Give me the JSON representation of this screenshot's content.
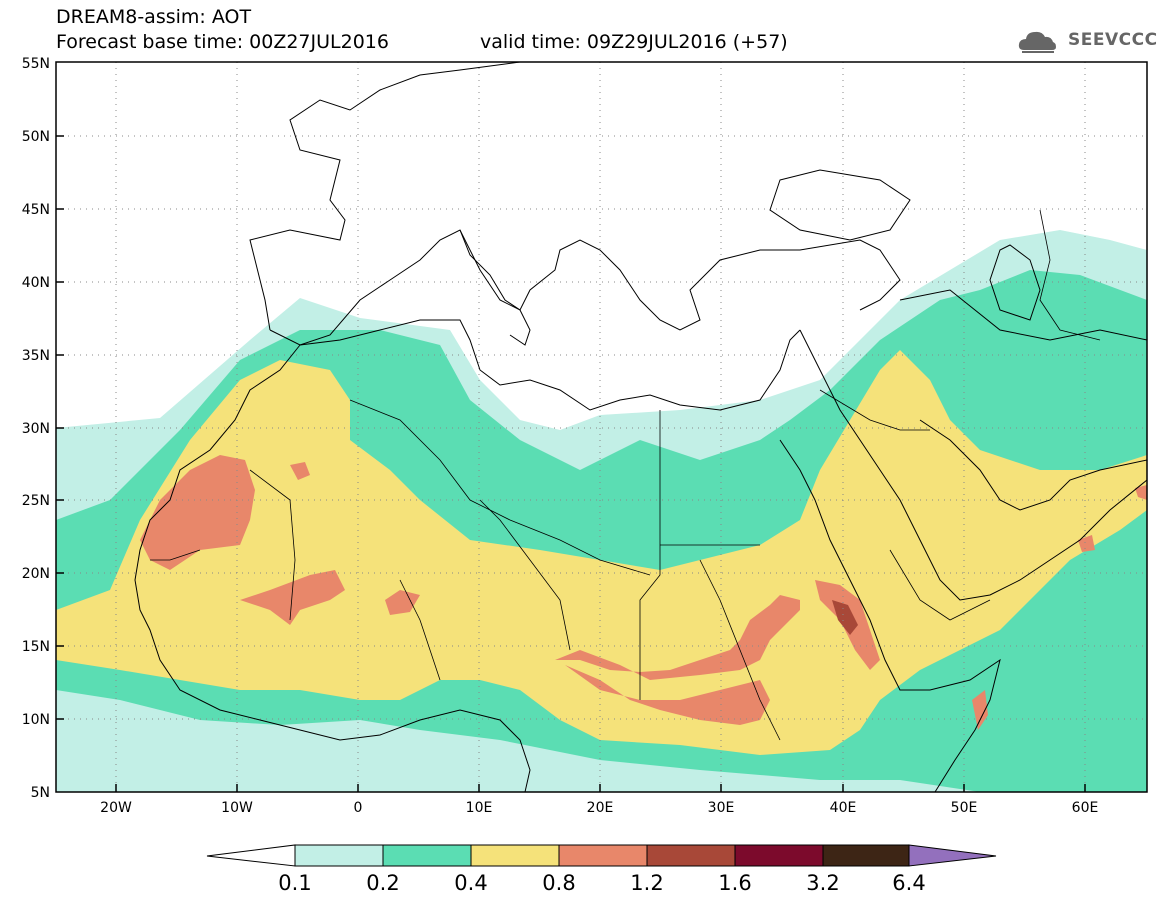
{
  "title": {
    "line1": "DREAM8-assim: AOT",
    "line2": "Forecast base time: 00Z27JUL2016",
    "valid": "valid time: 09Z29JUL2016 (+57)"
  },
  "logo": {
    "text": "SEEVCCC",
    "icon": "cloud-icon"
  },
  "map": {
    "lat_labels": [
      "55N",
      "50N",
      "45N",
      "40N",
      "35N",
      "30N",
      "25N",
      "20N",
      "15N",
      "10N",
      "5N"
    ],
    "lon_labels": [
      "20W",
      "10W",
      "0",
      "10E",
      "20E",
      "30E",
      "40E",
      "50E",
      "60E"
    ],
    "lon_range": [
      -25,
      65
    ],
    "lat_range": [
      5,
      55
    ]
  },
  "colorbar": {
    "levels": [
      "0.1",
      "0.2",
      "0.4",
      "0.8",
      "1.2",
      "1.6",
      "3.2",
      "6.4"
    ],
    "colors": [
      "#ffffff",
      "#c2efe6",
      "#5bddb3",
      "#f5e27a",
      "#e8876a",
      "#a84838",
      "#7c0a2c",
      "#3d2515",
      "#9370bd"
    ]
  }
}
